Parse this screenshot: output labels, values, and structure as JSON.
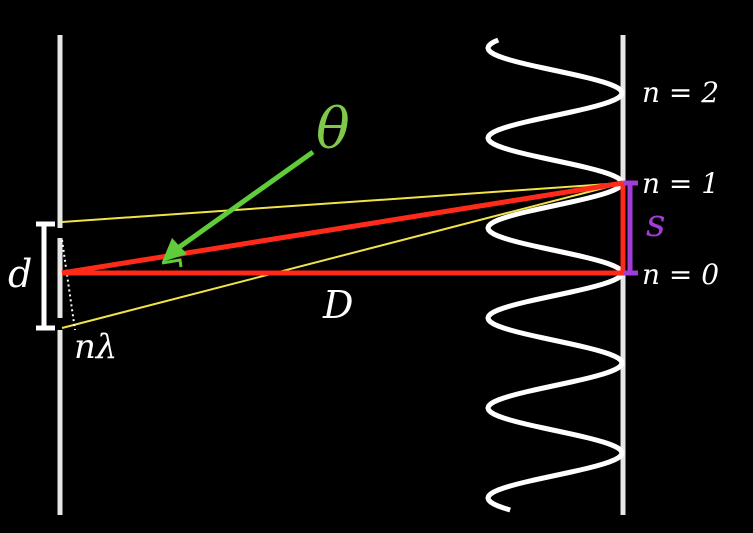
{
  "colors": {
    "background": "#000000",
    "barrier": "#e6e6e6",
    "screen": "#e6e6e6",
    "wave": "#ffffff",
    "yellow_ray": "#f2e24a",
    "red_ray": "#ff2a1a",
    "green_arrow": "#5fcc3a",
    "theta_text": "#7fc84a",
    "purple_bracket": "#a23cd6",
    "s_text": "#a23cd6",
    "d_bracket": "#ffffff"
  },
  "labels": {
    "theta": "θ",
    "d": "d",
    "n_lambda": "nλ",
    "D": "D",
    "s": "s",
    "n2": "n = 2",
    "n1": "n = 1",
    "n0": "n = 0"
  },
  "icons": {
    "theta_arrow": "arrow-icon",
    "d_bracket": "bracket-icon",
    "s_bracket": "bracket-icon"
  }
}
